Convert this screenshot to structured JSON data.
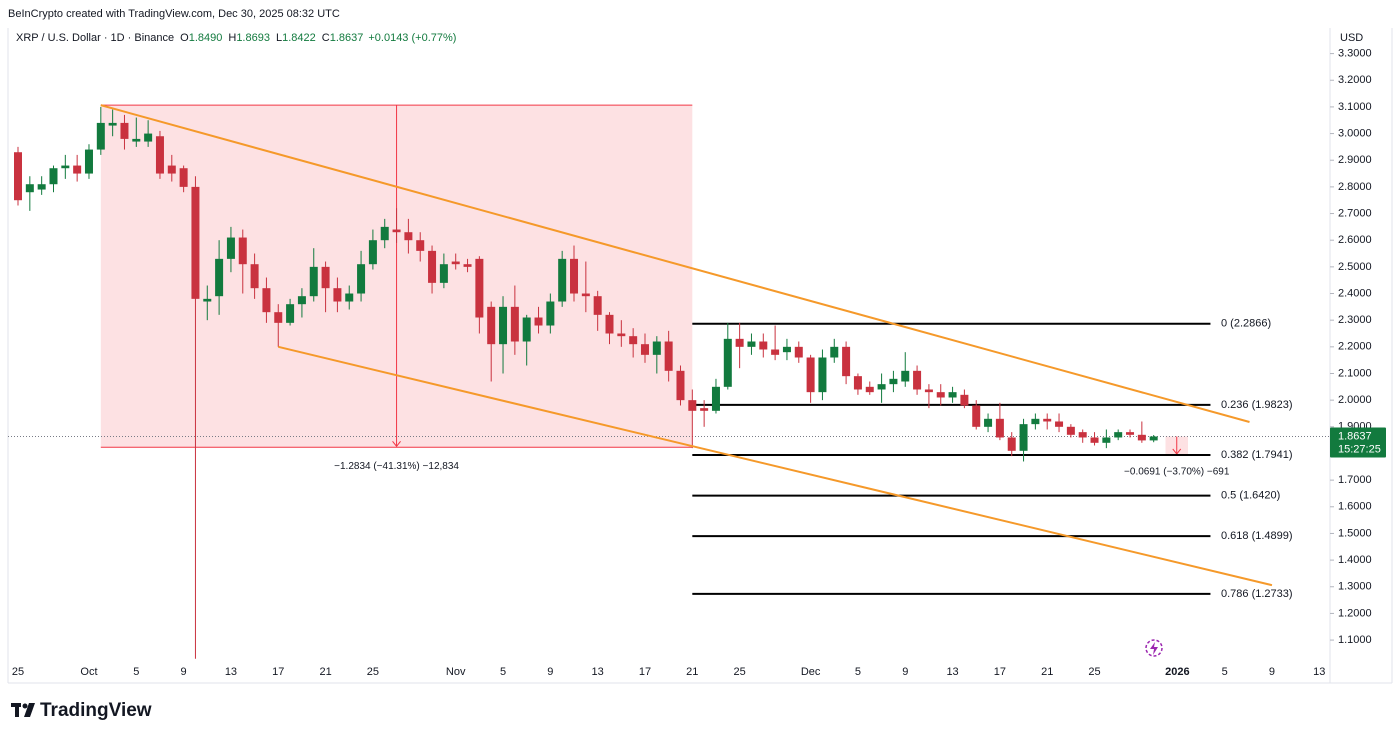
{
  "chart_data": {
    "type": "candlestick",
    "credit": "BeInCrypto created with TradingView.com, Dec 30, 2025 08:32 UTC",
    "symbol": "XRP / U.S. Dollar · 1D · Binance",
    "legend": {
      "open_key": "O",
      "open": "1.8490",
      "high_key": "H",
      "high": "1.8693",
      "low_key": "L",
      "low": "1.8422",
      "close_key": "C",
      "close": "1.8637",
      "change": "+0.0143 (+0.77%)"
    },
    "currency": "USD",
    "countdown": "15:27:25",
    "branding": "TradingView",
    "up_color": "#127a3e",
    "down_color": "#c9323f",
    "channel_color": "#f5992a",
    "categories": [
      "25",
      null,
      null,
      null,
      null,
      null,
      "Oct",
      null,
      null,
      null,
      "5",
      null,
      null,
      null,
      "9",
      null,
      null,
      null,
      "13",
      null,
      null,
      null,
      "17",
      null,
      null,
      null,
      "21",
      null,
      null,
      null,
      "25",
      null,
      null,
      null,
      null,
      null,
      null,
      "Nov",
      null,
      null,
      null,
      "5",
      null,
      null,
      null,
      "9",
      null,
      null,
      null,
      "13",
      null,
      null,
      null,
      "17",
      null,
      null,
      null,
      "21",
      null,
      null,
      null,
      "25",
      null,
      null,
      null,
      null,
      null,
      "Dec",
      null,
      null,
      null,
      "5",
      null,
      null,
      null,
      "9",
      null,
      null,
      null,
      "13",
      null,
      null,
      null,
      "17",
      null,
      null,
      null,
      "21",
      null,
      null,
      null,
      "25",
      null,
      null,
      null,
      null,
      null,
      null,
      "2026",
      null,
      null,
      null,
      "5",
      null,
      null,
      null,
      "9",
      null,
      null,
      null,
      "13"
    ],
    "open": [
      2.93,
      2.78,
      2.79,
      2.81,
      2.87,
      2.88,
      2.85,
      2.94,
      3.03,
      3.04,
      2.97,
      2.97,
      2.99,
      2.88,
      2.87,
      2.8,
      2.37,
      2.39,
      2.53,
      2.61,
      2.51,
      2.42,
      2.33,
      2.29,
      2.36,
      2.39,
      2.5,
      2.42,
      2.37,
      2.4,
      2.51,
      2.6,
      2.64,
      2.63,
      2.6,
      2.56,
      2.44,
      2.52,
      2.51,
      2.53,
      2.35,
      2.21,
      2.35,
      2.22,
      2.31,
      2.28,
      2.37,
      2.53,
      2.4,
      2.39,
      2.32,
      2.25,
      2.24,
      2.21,
      2.17,
      2.22,
      2.11,
      2.0,
      1.97,
      1.96,
      2.05,
      2.23,
      2.2,
      2.22,
      2.19,
      2.18,
      2.2,
      2.16,
      2.03,
      2.16,
      2.2,
      2.09,
      2.05,
      2.04,
      2.06,
      2.07,
      2.11,
      2.04,
      2.03,
      2.01,
      2.02,
      1.98,
      1.9,
      1.93,
      1.86,
      1.81,
      1.91,
      1.93,
      1.92,
      1.9,
      1.88,
      1.86,
      1.84,
      1.86,
      1.88,
      1.87,
      1.849,
      null,
      null,
      null,
      null,
      null,
      null,
      null,
      null,
      null,
      null,
      null,
      null,
      null,
      null
    ],
    "high": [
      2.95,
      2.84,
      2.84,
      2.88,
      2.92,
      2.92,
      2.96,
      3.1,
      3.09,
      3.07,
      3.06,
      3.05,
      3.01,
      2.92,
      2.88,
      2.84,
      2.43,
      2.6,
      2.65,
      2.64,
      2.55,
      2.46,
      2.36,
      2.38,
      2.42,
      2.57,
      2.52,
      2.46,
      2.43,
      2.56,
      2.64,
      2.68,
      2.72,
      2.68,
      2.63,
      2.58,
      2.55,
      2.55,
      2.53,
      2.54,
      2.37,
      2.39,
      2.43,
      2.32,
      2.35,
      2.4,
      2.56,
      2.58,
      2.52,
      2.41,
      2.33,
      2.3,
      2.27,
      2.25,
      2.24,
      2.26,
      2.13,
      2.04,
      2.0,
      2.08,
      2.29,
      2.29,
      2.25,
      2.25,
      2.28,
      2.23,
      2.22,
      2.17,
      2.19,
      2.23,
      2.22,
      2.1,
      2.07,
      2.1,
      2.11,
      2.18,
      2.13,
      2.06,
      2.06,
      2.05,
      2.04,
      2.0,
      1.95,
      1.99,
      1.88,
      1.93,
      1.95,
      1.95,
      1.95,
      1.91,
      1.89,
      1.88,
      1.89,
      1.89,
      1.89,
      1.92,
      1.8693,
      null,
      null,
      null,
      null,
      null,
      null,
      null,
      null,
      null,
      null,
      null,
      null,
      null,
      null
    ],
    "low": [
      2.73,
      2.71,
      2.77,
      2.78,
      2.83,
      2.82,
      2.83,
      2.92,
      2.99,
      2.94,
      2.95,
      2.95,
      2.83,
      2.82,
      2.78,
      1.03,
      2.3,
      2.32,
      2.48,
      2.4,
      2.38,
      2.29,
      2.2,
      2.28,
      2.31,
      2.37,
      2.33,
      2.33,
      2.34,
      2.37,
      2.49,
      2.57,
      2.59,
      2.55,
      2.52,
      2.4,
      2.42,
      2.49,
      2.48,
      2.25,
      2.07,
      2.1,
      2.17,
      2.13,
      2.25,
      2.25,
      2.35,
      2.37,
      2.33,
      2.26,
      2.21,
      2.2,
      2.16,
      2.14,
      2.1,
      2.07,
      1.98,
      1.82,
      1.9,
      1.95,
      2.04,
      2.12,
      2.17,
      2.16,
      2.15,
      2.15,
      2.14,
      1.99,
      2.0,
      2.14,
      2.06,
      2.02,
      2.02,
      1.99,
      2.03,
      2.05,
      2.02,
      1.97,
      1.98,
      1.99,
      1.97,
      1.89,
      1.88,
      1.85,
      1.79,
      1.77,
      1.89,
      1.89,
      1.88,
      1.86,
      1.84,
      1.83,
      1.82,
      1.85,
      1.86,
      1.84,
      1.8422,
      null,
      null,
      null,
      null,
      null,
      null,
      null,
      null,
      null,
      null,
      null,
      null,
      null,
      null
    ],
    "close": [
      2.75,
      2.81,
      2.81,
      2.87,
      2.88,
      2.85,
      2.94,
      3.04,
      3.04,
      2.98,
      2.98,
      3.0,
      2.85,
      2.85,
      2.8,
      2.38,
      2.38,
      2.53,
      2.61,
      2.51,
      2.42,
      2.33,
      2.29,
      2.36,
      2.39,
      2.5,
      2.42,
      2.37,
      2.4,
      2.51,
      2.6,
      2.65,
      2.63,
      2.6,
      2.56,
      2.44,
      2.51,
      2.51,
      2.5,
      2.31,
      2.21,
      2.35,
      2.22,
      2.31,
      2.28,
      2.37,
      2.53,
      2.4,
      2.39,
      2.32,
      2.25,
      2.24,
      2.21,
      2.17,
      2.22,
      2.11,
      2.0,
      1.96,
      1.96,
      2.05,
      2.23,
      2.2,
      2.22,
      2.19,
      2.17,
      2.2,
      2.16,
      2.03,
      2.16,
      2.2,
      2.09,
      2.04,
      2.03,
      2.06,
      2.08,
      2.11,
      2.04,
      2.03,
      2.01,
      2.03,
      1.98,
      1.9,
      1.93,
      1.86,
      1.81,
      1.91,
      1.93,
      1.92,
      1.9,
      1.87,
      1.86,
      1.84,
      1.86,
      1.88,
      1.87,
      1.849,
      1.8637,
      null,
      null,
      null,
      null,
      null,
      null,
      null,
      null,
      null,
      null,
      null,
      null,
      null,
      null
    ],
    "ylim": [
      0.939,
      3.396
    ],
    "yticks": [
      {
        "value": 1.1,
        "label": "1.1000"
      },
      {
        "value": 1.2,
        "label": "1.2000"
      },
      {
        "value": 1.3,
        "label": "1.3000"
      },
      {
        "value": 1.4,
        "label": "1.4000"
      },
      {
        "value": 1.5,
        "label": "1.5000"
      },
      {
        "value": 1.6,
        "label": "1.6000"
      },
      {
        "value": 1.7,
        "label": "1.7000"
      },
      {
        "value": 1.9,
        "label": "1.9000"
      },
      {
        "value": 2.0,
        "label": "2.0000"
      },
      {
        "value": 2.1,
        "label": "2.1000"
      },
      {
        "value": 2.2,
        "label": "2.2000"
      },
      {
        "value": 2.3,
        "label": "2.3000"
      },
      {
        "value": 2.4,
        "label": "2.4000"
      },
      {
        "value": 2.5,
        "label": "2.5000"
      },
      {
        "value": 2.6,
        "label": "2.6000"
      },
      {
        "value": 2.7,
        "label": "2.7000"
      },
      {
        "value": 2.8,
        "label": "2.8000"
      },
      {
        "value": 2.9,
        "label": "2.9000"
      },
      {
        "value": 3.0,
        "label": "3.0000"
      },
      {
        "value": 3.1,
        "label": "3.1000"
      },
      {
        "value": 3.2,
        "label": "3.2000"
      },
      {
        "value": 3.3,
        "label": "3.3000"
      }
    ],
    "grid": false,
    "fib_levels": [
      {
        "value": 2.2866,
        "label": "0 (2.2866)"
      },
      {
        "value": 1.9823,
        "label": "0.236 (1.9823)"
      },
      {
        "value": 1.7941,
        "label": "0.382 (1.7941)"
      },
      {
        "value": 1.642,
        "label": "0.5 (1.6420)"
      },
      {
        "value": 1.4899,
        "label": "0.618 (1.4899)"
      },
      {
        "value": 1.2733,
        "label": "0.786 (1.2733)"
      }
    ],
    "range_boxes": [
      {
        "top": 3.1066,
        "bottom": 1.8232,
        "label": "−1.2834 (−41.31%) −12,834"
      },
      {
        "top": 1.8637,
        "bottom": 1.7946,
        "label": "−0.0691 (−3.70%) −691"
      }
    ],
    "channel": [
      {
        "start": 3.1066,
        "end": 1.918
      },
      {
        "start": 2.2,
        "end": 1.306
      }
    ]
  }
}
